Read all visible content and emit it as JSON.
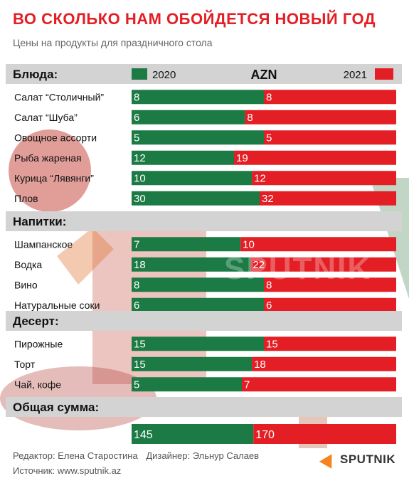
{
  "header": {
    "title": "ВО СКОЛЬКО НАМ ОБОЙДЕТСЯ НОВЫЙ ГОД",
    "subtitle": "Цены на продукты для праздничного стола"
  },
  "colors": {
    "accent": "#e31e24",
    "band": "#d3d3d3",
    "series_2020": "#1c7a45",
    "series_2021": "#e31e24"
  },
  "chart_data": {
    "type": "bar",
    "currency": "AZN",
    "series": [
      {
        "name": "2020",
        "color": "#1c7a45"
      },
      {
        "name": "2021",
        "color": "#e31e24"
      }
    ],
    "sections": [
      {
        "heading": "Блюда:",
        "show_legend": true,
        "items": [
          {
            "label": "Салат  “Столичный”",
            "v2020": 8,
            "v2021": 8
          },
          {
            "label": "Салат  “Шуба”",
            "v2020": 6,
            "v2021": 8
          },
          {
            "label": "Овощное ассорти",
            "v2020": 5,
            "v2021": 5
          },
          {
            "label": "Рыба жареная",
            "v2020": 12,
            "v2021": 19
          },
          {
            "label": "Курица “Лявянги”",
            "v2020": 10,
            "v2021": 12
          },
          {
            "label": "Плов",
            "v2020": 30,
            "v2021": 32
          }
        ]
      },
      {
        "heading": "Напитки:",
        "items": [
          {
            "label": "Шампанское",
            "v2020": 7,
            "v2021": 10
          },
          {
            "label": "Водка",
            "v2020": 18,
            "v2021": 22
          },
          {
            "label": "Вино",
            "v2020": 8,
            "v2021": 8
          },
          {
            "label": "Натуральные соки",
            "v2020": 6,
            "v2021": 6
          }
        ]
      },
      {
        "heading": "Десерт:",
        "items": [
          {
            "label": "Пирожные",
            "v2020": 15,
            "v2021": 15
          },
          {
            "label": "Торт",
            "v2020": 15,
            "v2021": 18
          },
          {
            "label": "Чай, кофе",
            "v2020": 5,
            "v2021": 7
          }
        ]
      },
      {
        "heading": "Общая сумма:",
        "items": [
          {
            "label": "",
            "v2020": 145,
            "v2021": 170
          }
        ]
      }
    ]
  },
  "watermark": "SPUTNIK",
  "footer": {
    "editor": "Редактор: Елена Старостина",
    "designer": "Дизайнер: Эльнур Салаев",
    "source": "Источник: www.sputnik.az"
  },
  "logo": {
    "text": "SPUTNIK"
  }
}
